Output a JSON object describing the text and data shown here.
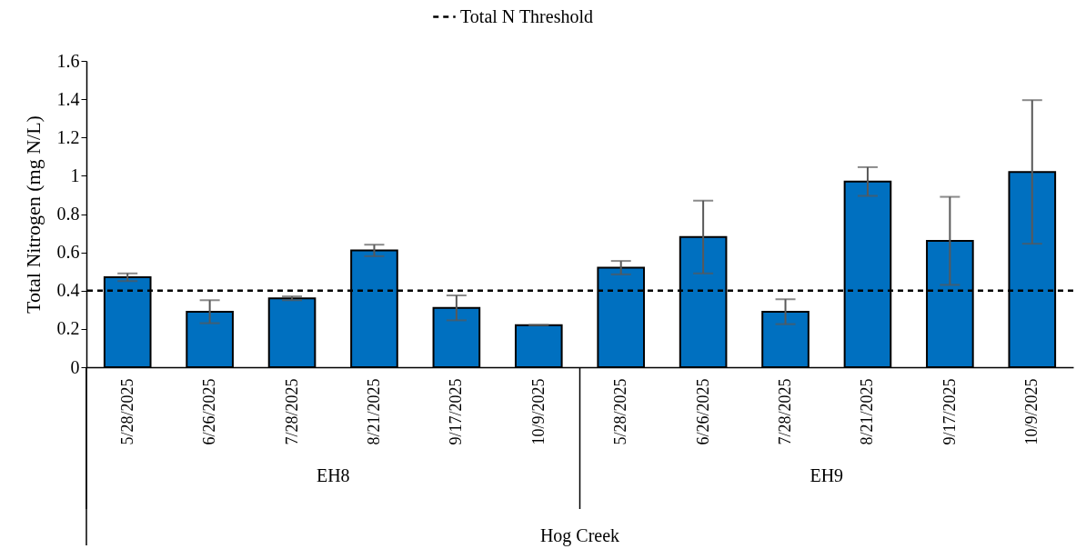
{
  "chart_data": {
    "type": "bar",
    "ylabel": "Total Nitrogen (mg N/L)",
    "categories": [
      "5/28/2025",
      "6/26/2025",
      "7/28/2025",
      "8/21/2025",
      "9/17/2025",
      "10/9/2025",
      "5/28/2025",
      "6/26/2025",
      "7/28/2025",
      "8/21/2025",
      "9/17/2025",
      "10/9/2025"
    ],
    "values": [
      0.47,
      0.29,
      0.36,
      0.61,
      0.31,
      0.22,
      0.52,
      0.68,
      0.29,
      0.97,
      0.66,
      1.02
    ],
    "errors": [
      0.02,
      0.06,
      0.01,
      0.03,
      0.065,
      0,
      0.035,
      0.19,
      0.065,
      0.075,
      0.23,
      0.375
    ],
    "color": "#0070c0",
    "ylim": [
      0,
      1.6
    ],
    "yticks": [
      0,
      0.2,
      0.4,
      0.6,
      0.8,
      1,
      1.2,
      1.4,
      1.6
    ],
    "ref_lines": [
      {
        "axis": "y",
        "value": 0.4,
        "label": "Total N Threshold",
        "color": "#000000",
        "line_style": "dashed"
      }
    ],
    "annotations": [
      "EH8",
      "EH9",
      "Hog Creek"
    ],
    "legend": "top",
    "grid": false
  }
}
